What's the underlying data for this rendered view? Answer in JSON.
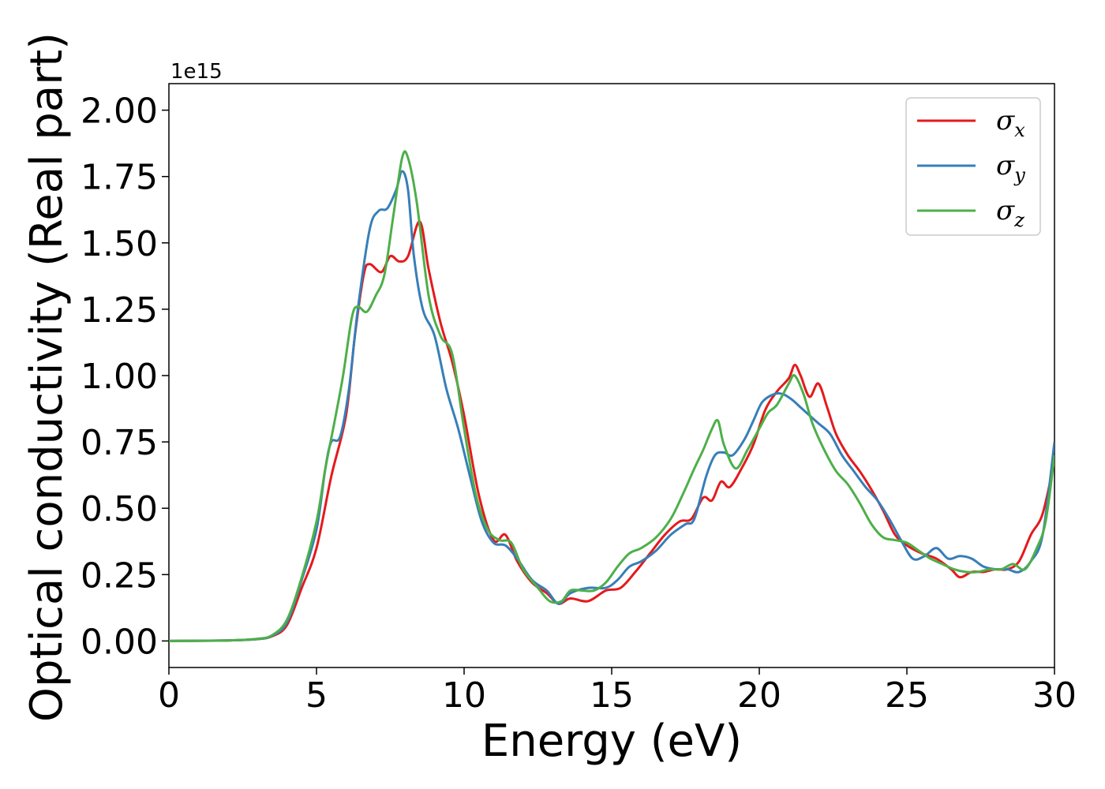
{
  "chart_data": {
    "type": "line",
    "xlabel": "Energy (eV)",
    "ylabel": "Optical conductivity (Real part)",
    "y_offset_label": "1e15",
    "xlim": [
      0,
      30
    ],
    "ylim": [
      -0.1,
      2.1
    ],
    "x_ticks": [
      0,
      5,
      10,
      15,
      20,
      25,
      30
    ],
    "x_tick_labels": [
      "0",
      "5",
      "10",
      "15",
      "20",
      "25",
      "30"
    ],
    "y_ticks": [
      0,
      0.25,
      0.5,
      0.75,
      1.0,
      1.25,
      1.5,
      1.75,
      2.0
    ],
    "y_tick_labels": [
      "0.00",
      "0.25",
      "0.50",
      "0.75",
      "1.00",
      "1.25",
      "1.50",
      "1.75",
      "2.00"
    ],
    "grid": false,
    "legend_position": "top-right",
    "series": [
      {
        "name": "σx",
        "symbol": "σ",
        "subscript": "x",
        "color": "#e41a1c",
        "points": [
          [
            0,
            0
          ],
          [
            2,
            0.002
          ],
          [
            3,
            0.007
          ],
          [
            3.5,
            0.018
          ],
          [
            4,
            0.06
          ],
          [
            4.5,
            0.2
          ],
          [
            5,
            0.35
          ],
          [
            5.5,
            0.62
          ],
          [
            6,
            0.85
          ],
          [
            6.3,
            1.15
          ],
          [
            6.6,
            1.38
          ],
          [
            6.8,
            1.42
          ],
          [
            7.2,
            1.39
          ],
          [
            7.5,
            1.45
          ],
          [
            7.8,
            1.43
          ],
          [
            8.1,
            1.45
          ],
          [
            8.5,
            1.58
          ],
          [
            8.8,
            1.4
          ],
          [
            9.2,
            1.2
          ],
          [
            9.6,
            1.05
          ],
          [
            10,
            0.85
          ],
          [
            10.5,
            0.55
          ],
          [
            11,
            0.38
          ],
          [
            11.4,
            0.4
          ],
          [
            11.8,
            0.3
          ],
          [
            12.3,
            0.22
          ],
          [
            12.8,
            0.18
          ],
          [
            13.2,
            0.14
          ],
          [
            13.6,
            0.16
          ],
          [
            14.2,
            0.15
          ],
          [
            14.8,
            0.19
          ],
          [
            15.3,
            0.2
          ],
          [
            15.8,
            0.26
          ],
          [
            16.3,
            0.33
          ],
          [
            16.8,
            0.4
          ],
          [
            17.3,
            0.45
          ],
          [
            17.7,
            0.46
          ],
          [
            18.1,
            0.54
          ],
          [
            18.4,
            0.53
          ],
          [
            18.7,
            0.6
          ],
          [
            19,
            0.58
          ],
          [
            19.4,
            0.65
          ],
          [
            19.8,
            0.74
          ],
          [
            20.2,
            0.87
          ],
          [
            20.6,
            0.94
          ],
          [
            21,
            0.99
          ],
          [
            21.2,
            1.04
          ],
          [
            21.4,
            1.0
          ],
          [
            21.7,
            0.92
          ],
          [
            22,
            0.97
          ],
          [
            22.3,
            0.88
          ],
          [
            22.6,
            0.78
          ],
          [
            23,
            0.7
          ],
          [
            23.4,
            0.64
          ],
          [
            23.8,
            0.57
          ],
          [
            24.2,
            0.49
          ],
          [
            24.6,
            0.4
          ],
          [
            25,
            0.36
          ],
          [
            25.5,
            0.33
          ],
          [
            26,
            0.31
          ],
          [
            26.5,
            0.27
          ],
          [
            26.8,
            0.24
          ],
          [
            27.2,
            0.26
          ],
          [
            27.6,
            0.26
          ],
          [
            28,
            0.27
          ],
          [
            28.4,
            0.27
          ],
          [
            28.8,
            0.3
          ],
          [
            29.2,
            0.4
          ],
          [
            29.6,
            0.48
          ],
          [
            30,
            0.68
          ]
        ]
      },
      {
        "name": "σy",
        "symbol": "σ",
        "subscript": "y",
        "color": "#377eb8",
        "points": [
          [
            0,
            0
          ],
          [
            2,
            0.002
          ],
          [
            3,
            0.007
          ],
          [
            3.5,
            0.02
          ],
          [
            4,
            0.07
          ],
          [
            4.5,
            0.23
          ],
          [
            5,
            0.42
          ],
          [
            5.3,
            0.65
          ],
          [
            5.5,
            0.75
          ],
          [
            5.8,
            0.77
          ],
          [
            6.1,
            0.95
          ],
          [
            6.4,
            1.25
          ],
          [
            6.8,
            1.55
          ],
          [
            7.1,
            1.62
          ],
          [
            7.4,
            1.63
          ],
          [
            7.7,
            1.7
          ],
          [
            7.9,
            1.77
          ],
          [
            8.1,
            1.7
          ],
          [
            8.3,
            1.45
          ],
          [
            8.6,
            1.25
          ],
          [
            9,
            1.15
          ],
          [
            9.4,
            0.95
          ],
          [
            9.8,
            0.8
          ],
          [
            10.2,
            0.62
          ],
          [
            10.6,
            0.45
          ],
          [
            11,
            0.37
          ],
          [
            11.4,
            0.36
          ],
          [
            11.8,
            0.31
          ],
          [
            12.3,
            0.23
          ],
          [
            12.8,
            0.19
          ],
          [
            13.2,
            0.14
          ],
          [
            13.6,
            0.18
          ],
          [
            14.2,
            0.2
          ],
          [
            14.8,
            0.2
          ],
          [
            15.2,
            0.23
          ],
          [
            15.6,
            0.28
          ],
          [
            16,
            0.3
          ],
          [
            16.5,
            0.34
          ],
          [
            17,
            0.4
          ],
          [
            17.5,
            0.44
          ],
          [
            17.8,
            0.46
          ],
          [
            18.2,
            0.62
          ],
          [
            18.5,
            0.7
          ],
          [
            18.8,
            0.71
          ],
          [
            19.1,
            0.7
          ],
          [
            19.5,
            0.76
          ],
          [
            19.8,
            0.83
          ],
          [
            20.1,
            0.9
          ],
          [
            20.5,
            0.93
          ],
          [
            20.8,
            0.93
          ],
          [
            21.1,
            0.91
          ],
          [
            21.4,
            0.88
          ],
          [
            21.7,
            0.85
          ],
          [
            22,
            0.82
          ],
          [
            22.4,
            0.78
          ],
          [
            22.8,
            0.7
          ],
          [
            23.2,
            0.64
          ],
          [
            23.6,
            0.58
          ],
          [
            24,
            0.53
          ],
          [
            24.4,
            0.46
          ],
          [
            24.8,
            0.38
          ],
          [
            25.2,
            0.31
          ],
          [
            25.6,
            0.32
          ],
          [
            26,
            0.35
          ],
          [
            26.4,
            0.31
          ],
          [
            26.8,
            0.32
          ],
          [
            27.2,
            0.31
          ],
          [
            27.6,
            0.28
          ],
          [
            28,
            0.27
          ],
          [
            28.4,
            0.27
          ],
          [
            28.8,
            0.26
          ],
          [
            29.2,
            0.3
          ],
          [
            29.6,
            0.4
          ],
          [
            30,
            0.75
          ]
        ]
      },
      {
        "name": "σz",
        "symbol": "σ",
        "subscript": "z",
        "color": "#4daf4a",
        "points": [
          [
            0,
            0
          ],
          [
            2,
            0.002
          ],
          [
            3,
            0.008
          ],
          [
            3.5,
            0.022
          ],
          [
            4,
            0.08
          ],
          [
            4.5,
            0.24
          ],
          [
            5,
            0.45
          ],
          [
            5.3,
            0.65
          ],
          [
            5.6,
            0.82
          ],
          [
            5.9,
            1.0
          ],
          [
            6.2,
            1.22
          ],
          [
            6.4,
            1.26
          ],
          [
            6.7,
            1.24
          ],
          [
            7,
            1.3
          ],
          [
            7.3,
            1.38
          ],
          [
            7.6,
            1.6
          ],
          [
            7.9,
            1.82
          ],
          [
            8.1,
            1.82
          ],
          [
            8.4,
            1.65
          ],
          [
            8.8,
            1.3
          ],
          [
            9.2,
            1.15
          ],
          [
            9.6,
            1.08
          ],
          [
            10,
            0.8
          ],
          [
            10.4,
            0.55
          ],
          [
            10.8,
            0.42
          ],
          [
            11.2,
            0.38
          ],
          [
            11.6,
            0.37
          ],
          [
            12,
            0.27
          ],
          [
            12.5,
            0.2
          ],
          [
            12.9,
            0.15
          ],
          [
            13.3,
            0.15
          ],
          [
            13.6,
            0.19
          ],
          [
            14,
            0.19
          ],
          [
            14.4,
            0.19
          ],
          [
            14.8,
            0.22
          ],
          [
            15.2,
            0.28
          ],
          [
            15.6,
            0.33
          ],
          [
            16,
            0.35
          ],
          [
            16.5,
            0.39
          ],
          [
            17,
            0.46
          ],
          [
            17.4,
            0.55
          ],
          [
            17.8,
            0.65
          ],
          [
            18.1,
            0.72
          ],
          [
            18.4,
            0.8
          ],
          [
            18.6,
            0.83
          ],
          [
            18.8,
            0.74
          ],
          [
            19.2,
            0.65
          ],
          [
            19.6,
            0.72
          ],
          [
            20,
            0.8
          ],
          [
            20.3,
            0.86
          ],
          [
            20.6,
            0.89
          ],
          [
            21,
            0.97
          ],
          [
            21.2,
            1.0
          ],
          [
            21.5,
            0.93
          ],
          [
            21.8,
            0.82
          ],
          [
            22.2,
            0.72
          ],
          [
            22.6,
            0.64
          ],
          [
            23,
            0.59
          ],
          [
            23.4,
            0.52
          ],
          [
            23.8,
            0.44
          ],
          [
            24.2,
            0.39
          ],
          [
            24.6,
            0.38
          ],
          [
            25,
            0.37
          ],
          [
            25.4,
            0.34
          ],
          [
            25.8,
            0.31
          ],
          [
            26.2,
            0.29
          ],
          [
            26.6,
            0.27
          ],
          [
            27,
            0.26
          ],
          [
            27.4,
            0.26
          ],
          [
            27.8,
            0.27
          ],
          [
            28.2,
            0.27
          ],
          [
            28.6,
            0.29
          ],
          [
            29,
            0.27
          ],
          [
            29.4,
            0.35
          ],
          [
            29.7,
            0.45
          ],
          [
            30,
            0.7
          ]
        ]
      }
    ]
  }
}
